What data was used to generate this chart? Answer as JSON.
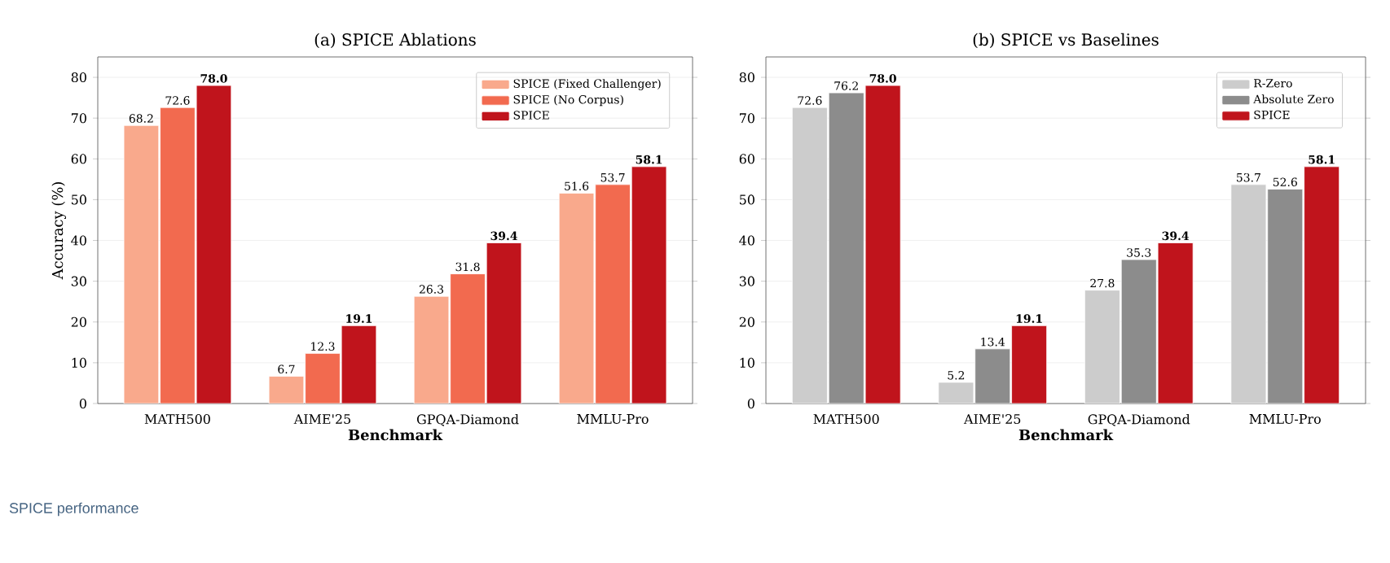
{
  "chart_data": [
    {
      "type": "bar",
      "title": "(a) SPICE Ablations",
      "xlabel": "Benchmark",
      "ylabel": "Accuracy (%)",
      "categories": [
        "MATH500",
        "AIME'25",
        "GPQA-Diamond",
        "MMLU-Pro"
      ],
      "series": [
        {
          "name": "SPICE (Fixed Challenger)",
          "color": "#f9a98c",
          "values": [
            68.2,
            6.7,
            26.3,
            51.6
          ],
          "value_labels": [
            "68.2",
            "6.7",
            "26.3",
            "51.6"
          ]
        },
        {
          "name": "SPICE (No Corpus)",
          "color": "#f26a4f",
          "values": [
            72.6,
            12.3,
            31.8,
            53.7
          ],
          "value_labels": [
            "72.6",
            "12.3",
            "31.8",
            "53.7"
          ]
        },
        {
          "name": "SPICE",
          "color": "#c0141c",
          "values": [
            78.0,
            19.1,
            39.4,
            58.1
          ],
          "value_labels": [
            "78.0",
            "19.1",
            "39.4",
            "58.1"
          ]
        }
      ],
      "ylim": [
        0,
        85
      ],
      "yticks": [
        0,
        10,
        20,
        30,
        40,
        50,
        60,
        70,
        80
      ],
      "grid": "y",
      "legend": "top right",
      "annotations": [
        "SPICE performance"
      ]
    },
    {
      "type": "bar",
      "title": "(b) SPICE vs Baselines",
      "xlabel": "Benchmark",
      "categories": [
        "MATH500",
        "AIME'25",
        "GPQA-Diamond",
        "MMLU-Pro"
      ],
      "series": [
        {
          "name": "R-Zero",
          "color": "#cccccc",
          "values": [
            72.6,
            5.2,
            27.8,
            53.7
          ],
          "value_labels": [
            "72.6",
            "5.2",
            "27.8",
            "53.7"
          ]
        },
        {
          "name": "Absolute Zero",
          "color": "#8c8c8c",
          "values": [
            76.2,
            13.4,
            35.3,
            52.6
          ],
          "value_labels": [
            "76.2",
            "13.4",
            "35.3",
            "52.6"
          ]
        },
        {
          "name": "SPICE",
          "color": "#c0141c",
          "values": [
            78.0,
            19.1,
            39.4,
            58.1
          ],
          "value_labels": [
            "78.0",
            "19.1",
            "39.4",
            "58.1"
          ]
        }
      ],
      "ylim": [
        0,
        85
      ],
      "yticks": [
        0,
        10,
        20,
        30,
        40,
        50,
        60,
        70,
        80
      ],
      "grid": "y",
      "legend": "top right"
    }
  ]
}
